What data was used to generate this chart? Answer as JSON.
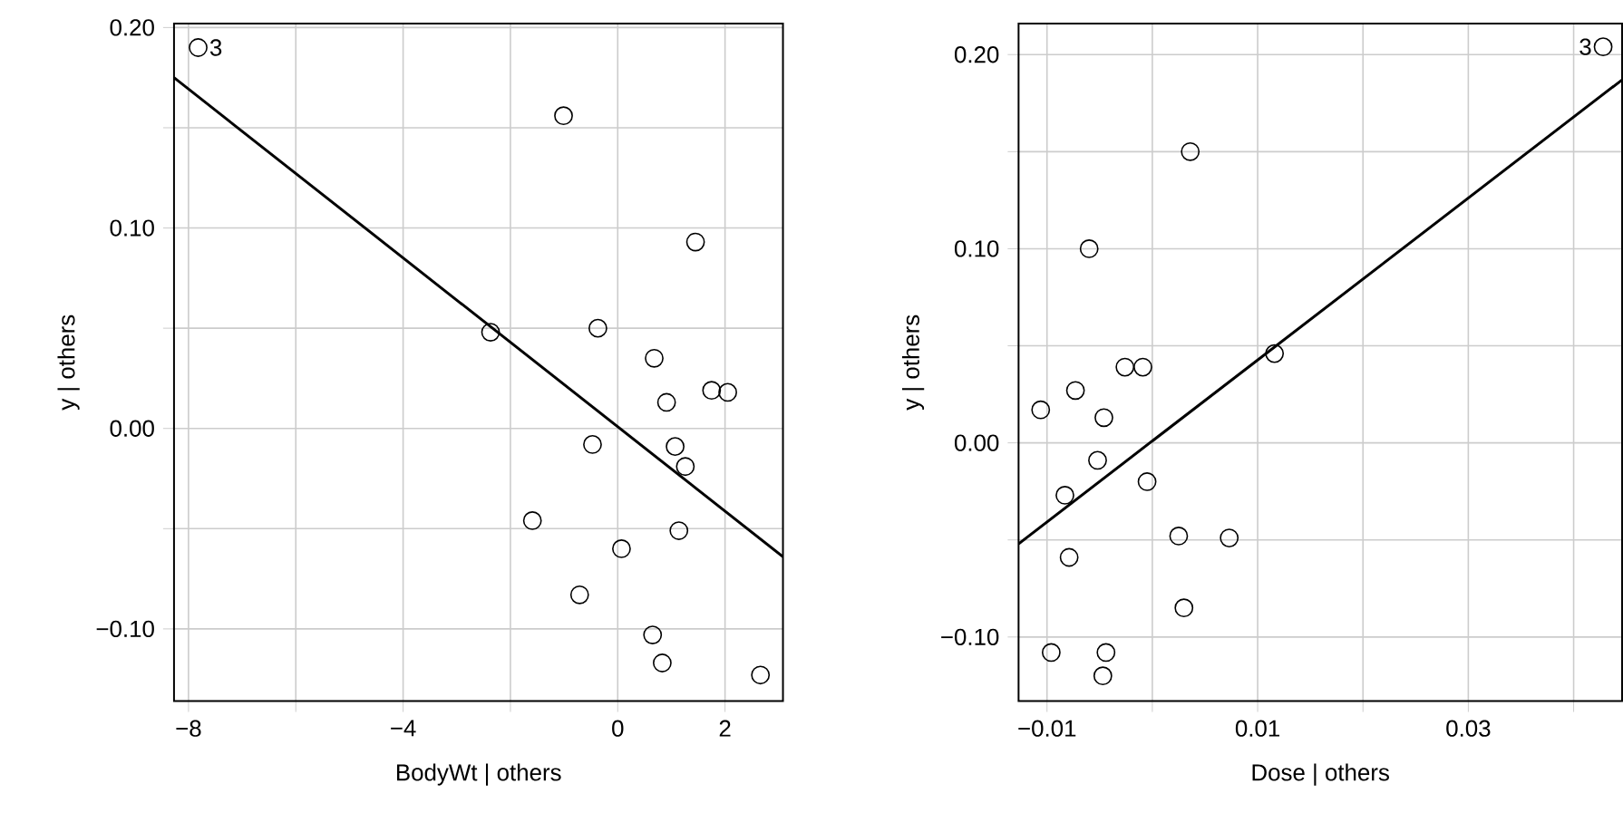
{
  "chart_data": [
    {
      "type": "scatter",
      "xlabel": "BodyWt | others",
      "ylabel": "y | others",
      "xlim": [
        -8.27,
        3.08
      ],
      "ylim": [
        -0.136,
        0.202
      ],
      "xticks": [
        {
          "value": -8,
          "label": "−8"
        },
        {
          "value": -6,
          "label": null
        },
        {
          "value": -4,
          "label": "−4"
        },
        {
          "value": -2,
          "label": null
        },
        {
          "value": 0,
          "label": "0"
        },
        {
          "value": 2,
          "label": "2"
        }
      ],
      "yticks": [
        {
          "value": -0.1,
          "label": "−0.10"
        },
        {
          "value": -0.05,
          "label": null
        },
        {
          "value": 0,
          "label": "0.00"
        },
        {
          "value": 0.05,
          "label": null
        },
        {
          "value": 0.1,
          "label": "0.10"
        },
        {
          "value": 0.15,
          "label": null
        },
        {
          "value": 0.2,
          "label": "0.20"
        }
      ],
      "grid": true,
      "series": [
        {
          "color": "#000000",
          "marker": "circle",
          "x": [
            -7.82,
            -1.01,
            1.45,
            -2.37,
            -0.37,
            0.68,
            1.75,
            2.05,
            0.91,
            -0.47,
            1.07,
            1.26,
            -1.59,
            1.14,
            0.07,
            -0.71,
            0.65,
            0.83,
            2.66
          ],
          "values": [
            0.19,
            0.156,
            0.093,
            0.048,
            0.05,
            0.035,
            0.019,
            0.018,
            0.013,
            -0.008,
            -0.009,
            -0.019,
            -0.046,
            -0.051,
            -0.06,
            -0.083,
            -0.103,
            -0.117,
            -0.123
          ]
        },
        {
          "type": "line",
          "color": "#000000",
          "marker": "none",
          "x": [
            -8.27,
            3.08
          ],
          "values": [
            0.175,
            -0.064
          ]
        }
      ],
      "annotations": [
        {
          "text": "3",
          "x": -7.82,
          "y": 0.19
        }
      ]
    },
    {
      "type": "scatter",
      "xlabel": "Dose | others",
      "ylabel": "y | others",
      "xlim": [
        -0.0127,
        0.0446
      ],
      "ylim": [
        -0.133,
        0.216
      ],
      "xticks": [
        {
          "value": -0.01,
          "label": "−0.01"
        },
        {
          "value": 0,
          "label": null
        },
        {
          "value": 0.01,
          "label": "0.01"
        },
        {
          "value": 0.02,
          "label": null
        },
        {
          "value": 0.03,
          "label": "0.03"
        },
        {
          "value": 0.04,
          "label": null
        }
      ],
      "yticks": [
        {
          "value": -0.1,
          "label": "−0.10"
        },
        {
          "value": -0.05,
          "label": null
        },
        {
          "value": 0,
          "label": "0.00"
        },
        {
          "value": 0.05,
          "label": null
        },
        {
          "value": 0.1,
          "label": "0.10"
        },
        {
          "value": 0.15,
          "label": null
        },
        {
          "value": 0.2,
          "label": "0.20"
        }
      ],
      "grid": true,
      "series": [
        {
          "color": "#000000",
          "marker": "circle",
          "x": [
            0.0428,
            0.0036,
            -0.006,
            0.0116,
            -0.0026,
            -0.0009,
            -0.0073,
            -0.0106,
            -0.0046,
            -0.0052,
            -0.0083,
            -0.0005,
            0.0025,
            0.0073,
            -0.0079,
            0.003,
            -0.0096,
            -0.0044,
            -0.0047
          ],
          "values": [
            0.204,
            0.15,
            0.1,
            0.046,
            0.039,
            0.039,
            0.027,
            0.017,
            0.013,
            -0.009,
            -0.027,
            -0.02,
            -0.048,
            -0.049,
            -0.059,
            -0.085,
            -0.108,
            -0.108,
            -0.12
          ]
        },
        {
          "type": "line",
          "color": "#000000",
          "marker": "none",
          "x": [
            -0.0127,
            0.0446
          ],
          "values": [
            -0.052,
            0.187
          ]
        }
      ],
      "annotations": [
        {
          "text": "3",
          "x": 0.0428,
          "y": 0.204
        }
      ]
    }
  ]
}
